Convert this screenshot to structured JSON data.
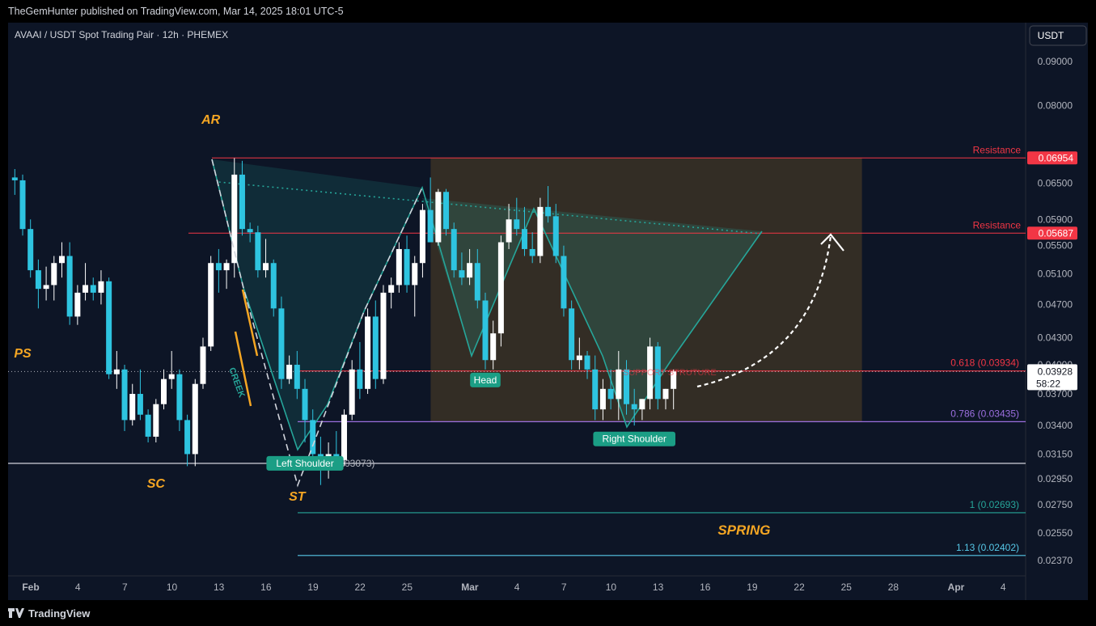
{
  "header": {
    "published": "TheGemHunter published on TradingView.com, Mar 14, 2025 18:01 UTC-5"
  },
  "footer": {
    "brand": "TradingView"
  },
  "chart_data": {
    "type": "candlestick",
    "title": "AVAAI / USDT Spot Trading Pair · 12h · PHEMEX",
    "currency_button": "USDT",
    "price_scale": "log",
    "ylim": [
      0.0223,
      0.0985
    ],
    "y_ticks": [
      "0.09000",
      "0.08000",
      "0.06500",
      "0.05900",
      "0.05500",
      "0.05100",
      "0.04700",
      "0.04300",
      "0.04000",
      "0.03700",
      "0.03400",
      "0.03150",
      "0.02950",
      "0.02750",
      "0.02550",
      "0.02370"
    ],
    "x_ticks": [
      {
        "label": "Feb",
        "t": "2025-02-01",
        "bold": true
      },
      {
        "label": "4",
        "t": "2025-02-04"
      },
      {
        "label": "7",
        "t": "2025-02-07"
      },
      {
        "label": "10",
        "t": "2025-02-10"
      },
      {
        "label": "13",
        "t": "2025-02-13"
      },
      {
        "label": "16",
        "t": "2025-02-16"
      },
      {
        "label": "19",
        "t": "2025-02-19"
      },
      {
        "label": "22",
        "t": "2025-02-22"
      },
      {
        "label": "25",
        "t": "2025-02-25"
      },
      {
        "label": "Mar",
        "t": "2025-03-01",
        "bold": true
      },
      {
        "label": "4",
        "t": "2025-03-04"
      },
      {
        "label": "7",
        "t": "2025-03-07"
      },
      {
        "label": "10",
        "t": "2025-03-10"
      },
      {
        "label": "13",
        "t": "2025-03-13"
      },
      {
        "label": "16",
        "t": "2025-03-16"
      },
      {
        "label": "19",
        "t": "2025-03-19"
      },
      {
        "label": "22",
        "t": "2025-03-22"
      },
      {
        "label": "25",
        "t": "2025-03-25"
      },
      {
        "label": "28",
        "t": "2025-03-28"
      },
      {
        "label": "Apr",
        "t": "2025-04-01",
        "bold": true
      },
      {
        "label": "4",
        "t": "2025-04-04"
      }
    ],
    "candles": [
      [
        "2025-01-31 12:00",
        0.066,
        0.0675,
        0.063,
        0.0655
      ],
      [
        "2025-02-01 00:00",
        0.0655,
        0.0665,
        0.0565,
        0.0575
      ],
      [
        "2025-02-01 12:00",
        0.0575,
        0.059,
        0.0505,
        0.0515
      ],
      [
        "2025-02-02 00:00",
        0.0515,
        0.053,
        0.0465,
        0.049
      ],
      [
        "2025-02-02 12:00",
        0.049,
        0.052,
        0.0475,
        0.0495
      ],
      [
        "2025-02-03 00:00",
        0.0495,
        0.0535,
        0.0475,
        0.0525
      ],
      [
        "2025-02-03 12:00",
        0.0525,
        0.0555,
        0.0505,
        0.0535
      ],
      [
        "2025-02-04 00:00",
        0.0535,
        0.0555,
        0.0445,
        0.0455
      ],
      [
        "2025-02-04 12:00",
        0.0455,
        0.0495,
        0.0445,
        0.0485
      ],
      [
        "2025-02-05 00:00",
        0.0485,
        0.0525,
        0.0475,
        0.0495
      ],
      [
        "2025-02-05 12:00",
        0.0495,
        0.0505,
        0.0475,
        0.0485
      ],
      [
        "2025-02-06 00:00",
        0.0485,
        0.0515,
        0.047,
        0.05
      ],
      [
        "2025-02-06 12:00",
        0.05,
        0.0505,
        0.0385,
        0.039
      ],
      [
        "2025-02-07 00:00",
        0.039,
        0.0415,
        0.0375,
        0.0395
      ],
      [
        "2025-02-07 12:00",
        0.0395,
        0.04,
        0.0335,
        0.0345
      ],
      [
        "2025-02-08 00:00",
        0.0345,
        0.038,
        0.034,
        0.037
      ],
      [
        "2025-02-08 12:00",
        0.037,
        0.0395,
        0.0345,
        0.035
      ],
      [
        "2025-02-09 00:00",
        0.035,
        0.0355,
        0.0325,
        0.033
      ],
      [
        "2025-02-09 12:00",
        0.033,
        0.0365,
        0.0325,
        0.036
      ],
      [
        "2025-02-10 00:00",
        0.036,
        0.0395,
        0.0355,
        0.0385
      ],
      [
        "2025-02-10 12:00",
        0.0385,
        0.0415,
        0.0375,
        0.039
      ],
      [
        "2025-02-11 00:00",
        0.039,
        0.0395,
        0.0335,
        0.0345
      ],
      [
        "2025-02-11 12:00",
        0.0345,
        0.035,
        0.0305,
        0.0315
      ],
      [
        "2025-02-12 00:00",
        0.0315,
        0.0385,
        0.0305,
        0.038
      ],
      [
        "2025-02-12 12:00",
        0.038,
        0.043,
        0.0375,
        0.042
      ],
      [
        "2025-02-13 00:00",
        0.042,
        0.0535,
        0.0415,
        0.0525
      ],
      [
        "2025-02-13 12:00",
        0.0525,
        0.0545,
        0.0485,
        0.0515
      ],
      [
        "2025-02-14 00:00",
        0.0515,
        0.053,
        0.049,
        0.0525
      ],
      [
        "2025-02-14 12:00",
        0.0525,
        0.0695,
        0.0505,
        0.0665
      ],
      [
        "2025-02-15 00:00",
        0.0665,
        0.069,
        0.0565,
        0.0575
      ],
      [
        "2025-02-15 12:00",
        0.0575,
        0.0585,
        0.0555,
        0.057
      ],
      [
        "2025-02-16 00:00",
        0.057,
        0.058,
        0.0505,
        0.0515
      ],
      [
        "2025-02-16 12:00",
        0.0515,
        0.056,
        0.0505,
        0.0525
      ],
      [
        "2025-02-17 00:00",
        0.0525,
        0.053,
        0.0455,
        0.0465
      ],
      [
        "2025-02-17 12:00",
        0.0465,
        0.048,
        0.0375,
        0.0385
      ],
      [
        "2025-02-18 00:00",
        0.0385,
        0.041,
        0.038,
        0.04
      ],
      [
        "2025-02-18 12:00",
        0.04,
        0.0415,
        0.0365,
        0.0375
      ],
      [
        "2025-02-19 00:00",
        0.0375,
        0.0385,
        0.0325,
        0.0345
      ],
      [
        "2025-02-19 12:00",
        0.0345,
        0.0355,
        0.0305,
        0.0315
      ],
      [
        "2025-02-20 00:00",
        0.0315,
        0.033,
        0.029,
        0.031
      ],
      [
        "2025-02-20 12:00",
        0.031,
        0.0325,
        0.0295,
        0.0315
      ],
      [
        "2025-02-21 00:00",
        0.0315,
        0.0335,
        0.0305,
        0.031
      ],
      [
        "2025-02-21 12:00",
        0.031,
        0.0355,
        0.0305,
        0.035
      ],
      [
        "2025-02-22 00:00",
        0.035,
        0.0405,
        0.0345,
        0.0395
      ],
      [
        "2025-02-22 12:00",
        0.0395,
        0.0425,
        0.0365,
        0.0375
      ],
      [
        "2025-02-23 00:00",
        0.0375,
        0.0465,
        0.037,
        0.0455
      ],
      [
        "2025-02-23 12:00",
        0.0455,
        0.0475,
        0.0375,
        0.0385
      ],
      [
        "2025-02-24 00:00",
        0.0385,
        0.0495,
        0.038,
        0.0485
      ],
      [
        "2025-02-24 12:00",
        0.0485,
        0.0505,
        0.0465,
        0.0495
      ],
      [
        "2025-02-25 00:00",
        0.0495,
        0.0555,
        0.0485,
        0.0545
      ],
      [
        "2025-02-25 12:00",
        0.0545,
        0.0565,
        0.0485,
        0.0495
      ],
      [
        "2025-02-26 00:00",
        0.0495,
        0.0535,
        0.0455,
        0.0525
      ],
      [
        "2025-02-26 12:00",
        0.0525,
        0.0615,
        0.0505,
        0.0605
      ],
      [
        "2025-02-27 00:00",
        0.0605,
        0.066,
        0.0555,
        0.0555
      ],
      [
        "2025-02-27 12:00",
        0.0555,
        0.064,
        0.055,
        0.0635
      ],
      [
        "2025-02-28 00:00",
        0.0635,
        0.064,
        0.0565,
        0.0575
      ],
      [
        "2025-02-28 12:00",
        0.0575,
        0.0585,
        0.0505,
        0.0515
      ],
      [
        "2025-03-01 00:00",
        0.0515,
        0.054,
        0.0495,
        0.0505
      ],
      [
        "2025-03-01 12:00",
        0.0505,
        0.0545,
        0.0495,
        0.0525
      ],
      [
        "2025-03-02 00:00",
        0.0525,
        0.0545,
        0.0465,
        0.0475
      ],
      [
        "2025-03-02 12:00",
        0.0475,
        0.0485,
        0.0395,
        0.0405
      ],
      [
        "2025-03-03 00:00",
        0.0405,
        0.045,
        0.0395,
        0.0435
      ],
      [
        "2025-03-03 12:00",
        0.0435,
        0.0565,
        0.042,
        0.0555
      ],
      [
        "2025-03-04 00:00",
        0.0555,
        0.0615,
        0.0545,
        0.059
      ],
      [
        "2025-03-04 12:00",
        0.059,
        0.0625,
        0.0565,
        0.0575
      ],
      [
        "2025-03-05 00:00",
        0.0575,
        0.061,
        0.0535,
        0.0545
      ],
      [
        "2025-03-05 12:00",
        0.0545,
        0.057,
        0.0525,
        0.0535
      ],
      [
        "2025-03-06 00:00",
        0.0535,
        0.0625,
        0.0525,
        0.061
      ],
      [
        "2025-03-06 12:00",
        0.061,
        0.0645,
        0.0585,
        0.0595
      ],
      [
        "2025-03-07 00:00",
        0.0595,
        0.0615,
        0.0525,
        0.0535
      ],
      [
        "2025-03-07 12:00",
        0.0535,
        0.055,
        0.0455,
        0.0465
      ],
      [
        "2025-03-08 00:00",
        0.0465,
        0.0475,
        0.0395,
        0.0405
      ],
      [
        "2025-03-08 12:00",
        0.0405,
        0.043,
        0.0395,
        0.041
      ],
      [
        "2025-03-09 00:00",
        0.041,
        0.0415,
        0.0385,
        0.0395
      ],
      [
        "2025-03-09 12:00",
        0.0395,
        0.041,
        0.0345,
        0.0355
      ],
      [
        "2025-03-10 00:00",
        0.0355,
        0.0385,
        0.0345,
        0.0375
      ],
      [
        "2025-03-10 12:00",
        0.0375,
        0.0395,
        0.0355,
        0.0365
      ],
      [
        "2025-03-11 00:00",
        0.0365,
        0.0415,
        0.0345,
        0.0395
      ],
      [
        "2025-03-11 12:00",
        0.0395,
        0.0405,
        0.035,
        0.036
      ],
      [
        "2025-03-12 00:00",
        0.036,
        0.0375,
        0.034,
        0.0355
      ],
      [
        "2025-03-12 12:00",
        0.0355,
        0.0365,
        0.0345,
        0.0365
      ],
      [
        "2025-03-13 00:00",
        0.0365,
        0.043,
        0.0355,
        0.042
      ],
      [
        "2025-03-13 12:00",
        0.042,
        0.0425,
        0.0355,
        0.0365
      ],
      [
        "2025-03-14 00:00",
        0.0365,
        0.0375,
        0.0355,
        0.0375
      ],
      [
        "2025-03-14 12:00",
        0.0375,
        0.0395,
        0.0355,
        0.03928
      ]
    ],
    "candle_colors": {
      "up": "#ffffff",
      "down": "#2ec4e0"
    },
    "current_price": {
      "value": 0.03928,
      "label": "0.03928",
      "countdown": "58:22"
    },
    "levels": [
      {
        "name": "Resistance",
        "value": 0.06954,
        "label": "0.06954",
        "color": "#f23645",
        "tag_color": "#f23645"
      },
      {
        "name": "Resistance",
        "value": 0.05687,
        "label": "0.05687",
        "color": "#f23645",
        "tag_color": "#f23645"
      }
    ],
    "fib_levels": [
      {
        "label": "0.618 (0.03934)",
        "value": 0.03934,
        "color": "#f23645"
      },
      {
        "label": "0.786 (0.03435)",
        "value": 0.03435,
        "color": "#9c6fe0"
      },
      {
        "label": "(0.03073)",
        "value": 0.03073,
        "color": "#b2b5be"
      },
      {
        "label": "1 (0.02693)",
        "value": 0.02693,
        "color": "#26a69a"
      },
      {
        "label": "1.13 (0.02402)",
        "value": 0.02402,
        "color": "#56c8e8"
      }
    ],
    "wyckoff_labels": [
      {
        "text": "PS",
        "t": "2025-02-01 00:00",
        "price": 0.0408
      },
      {
        "text": "AR",
        "t": "2025-02-13 00:00",
        "price": 0.0762
      },
      {
        "text": "SC",
        "t": "2025-02-09 12:00",
        "price": 0.0288
      },
      {
        "text": "ST",
        "t": "2025-02-18 12:00",
        "price": 0.0278
      },
      {
        "text": "SPRING",
        "t": "2025-03-19 00:00",
        "price": 0.0254
      }
    ],
    "creek_label": "CREEK",
    "pattern_labels": [
      {
        "text": "Left Shoulder",
        "t": "2025-02-19 00:00",
        "price": 0.03073
      },
      {
        "text": "Head",
        "t": "2025-03-02 12:00",
        "price": 0.0384
      },
      {
        "text": "Right Shoulder",
        "t": "2025-03-12 00:00",
        "price": 0.0328
      }
    ],
    "structure_label": "SUPPORT STRUTURE",
    "range_box": {
      "t0": "2025-02-26 12:00",
      "t1": "2025-03-26 00:00",
      "top": 0.06954,
      "bottom": 0.03435,
      "color": "rgba(245,166,35,0.17)"
    },
    "neckline": {
      "t0": "2025-02-13 00:00",
      "p0": 0.0652,
      "t1": "2025-03-19 12:00",
      "p1": 0.0568
    }
  }
}
